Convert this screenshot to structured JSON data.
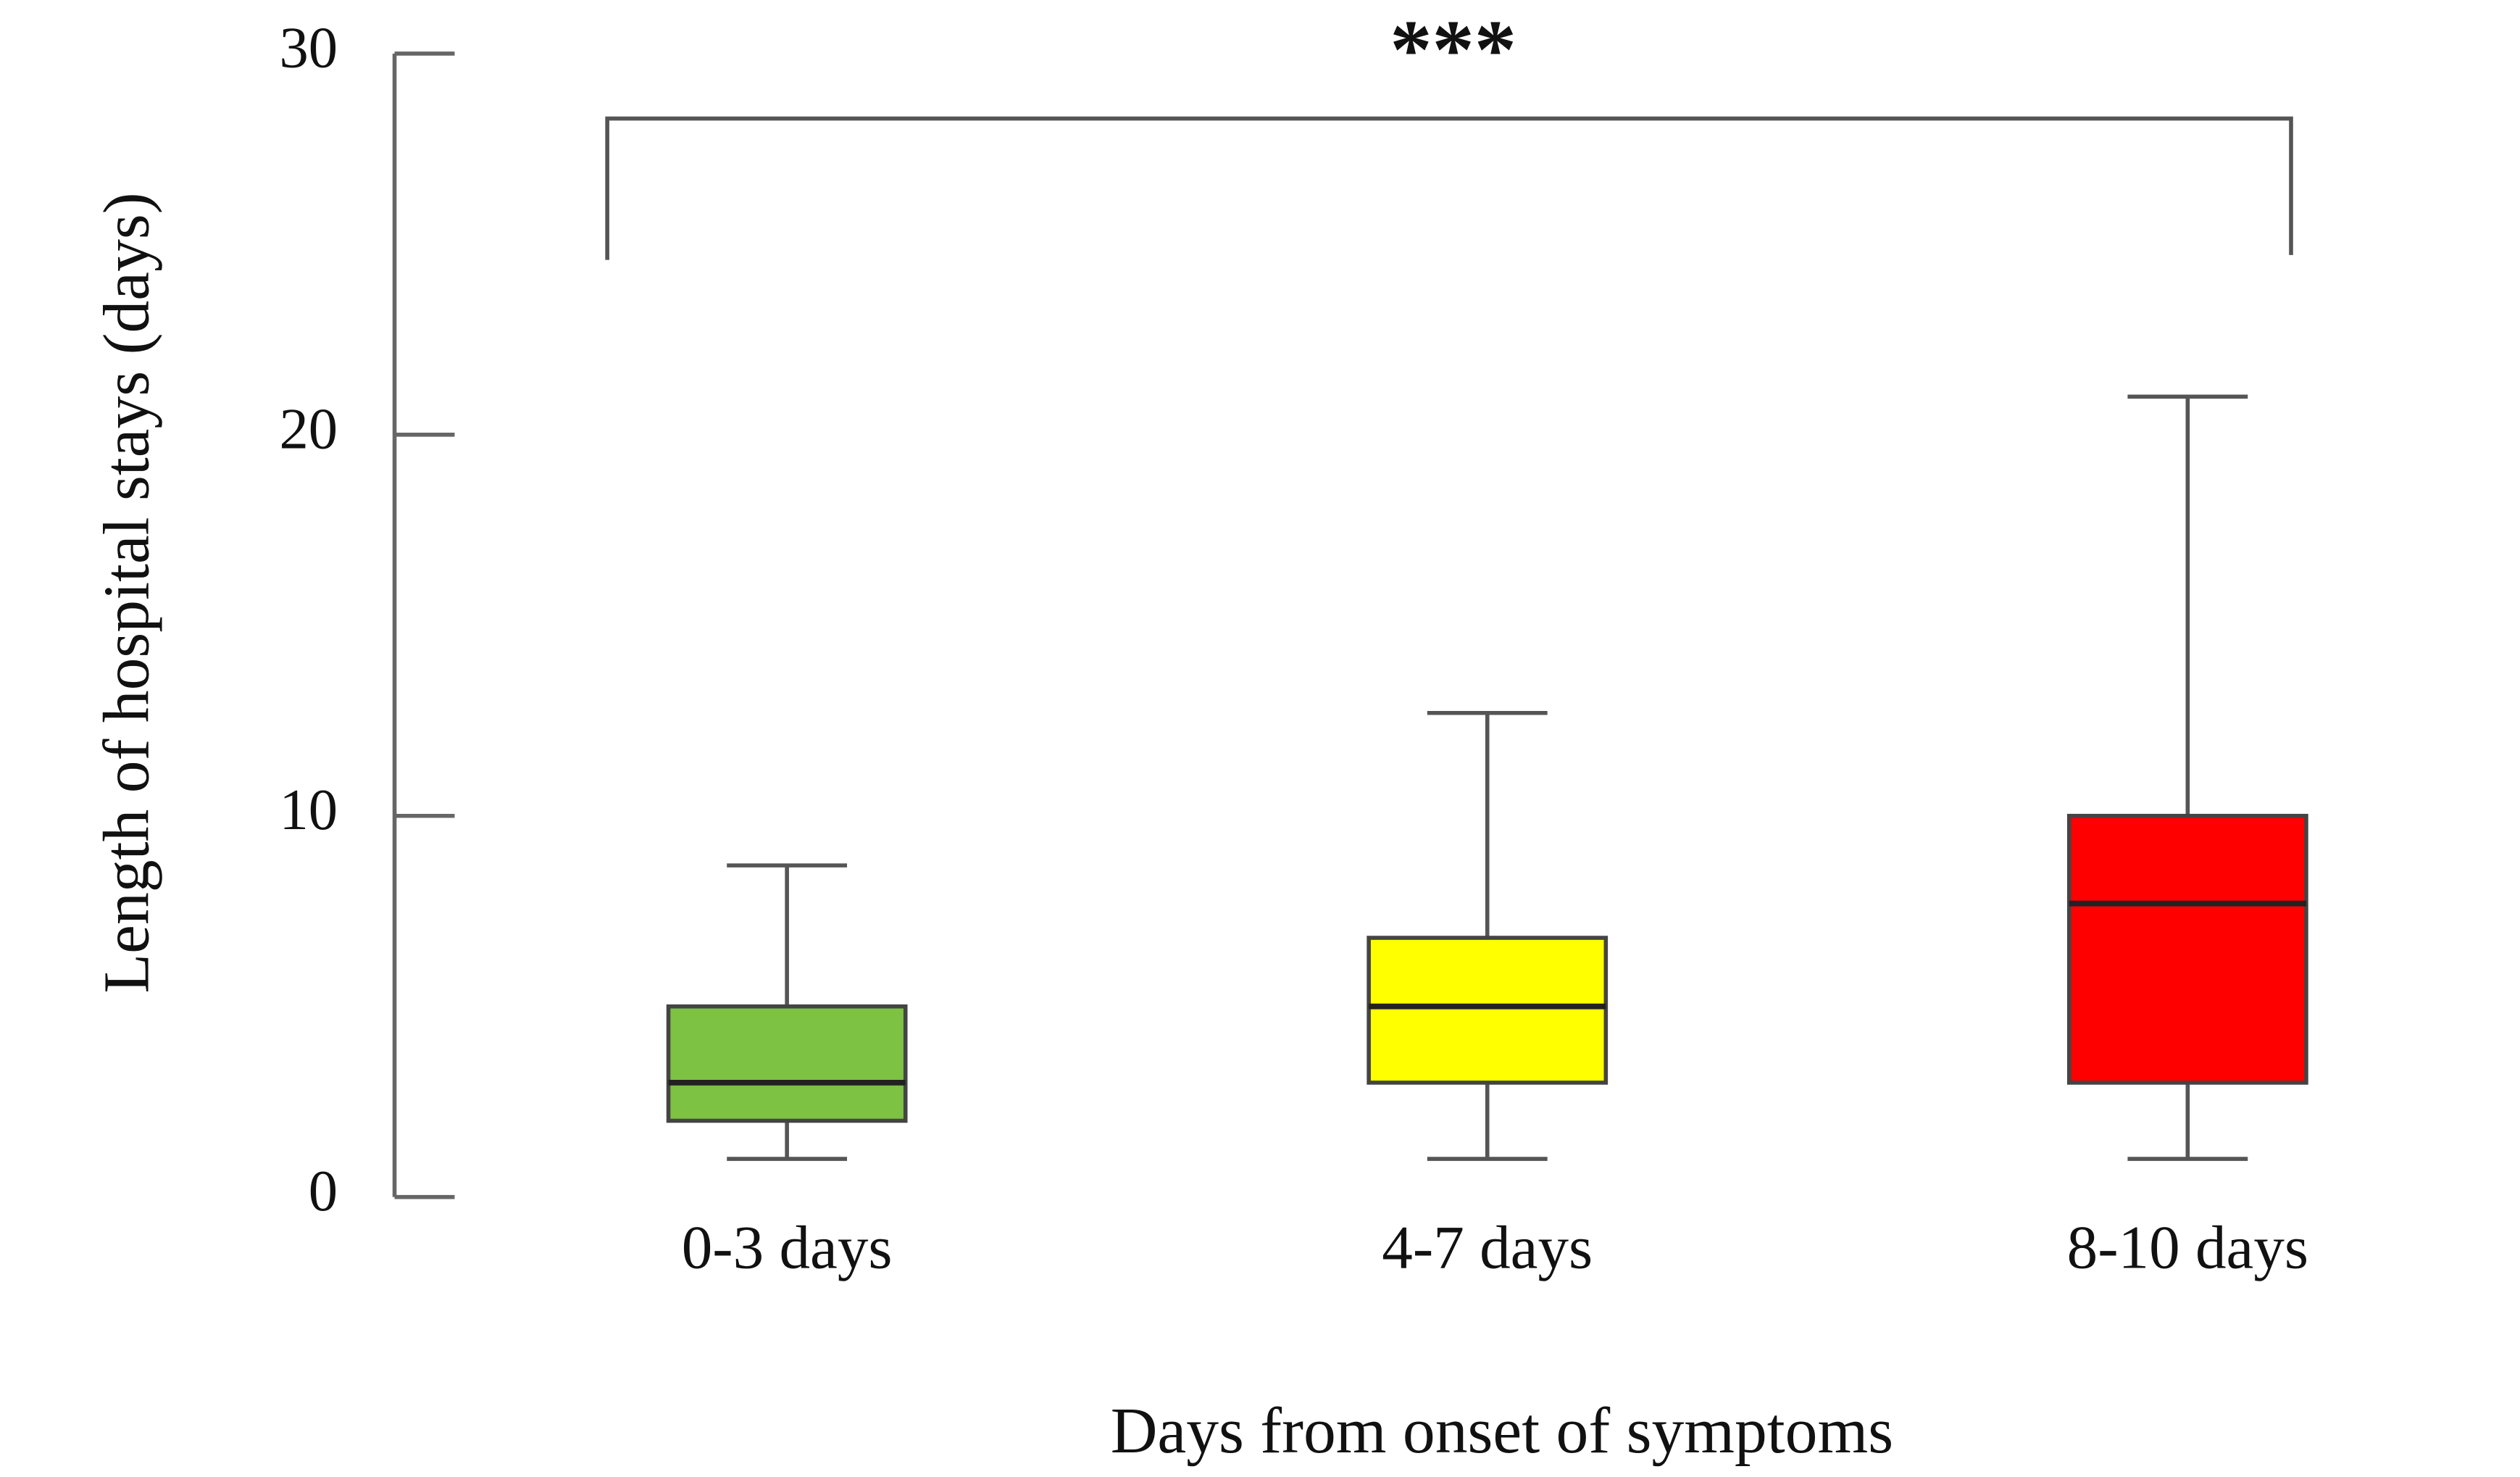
{
  "chart_data": {
    "type": "box",
    "x_label": "Days from onset of symptoms",
    "y_label": "Length of hospital stays (days)",
    "annotation": "***",
    "categories": [
      "0-3 days",
      "4-7 days",
      "8-10 days"
    ],
    "boxes": [
      {
        "min": 1,
        "q1": 2,
        "median": 3,
        "q3": 5,
        "max": 8.7,
        "color": "#7dc242"
      },
      {
        "min": 1,
        "q1": 3,
        "median": 5,
        "q3": 6.8,
        "max": 12.7,
        "color": "#ffff00"
      },
      {
        "min": 1,
        "q1": 3,
        "median": 7.7,
        "q3": 10,
        "max": 21,
        "color": "#ff0000"
      }
    ],
    "ylim": [
      0,
      30
    ],
    "yticks": [
      0,
      10,
      20,
      30
    ],
    "grid": false
  }
}
